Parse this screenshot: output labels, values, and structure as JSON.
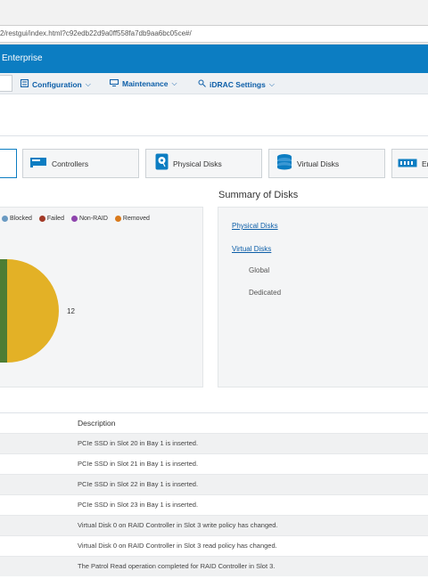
{
  "browser": {
    "url": "2/restgui/index.html?c92edb22d9a0ff558fa7db9aa6bc05ce#/"
  },
  "header": {
    "brand": "Enterprise",
    "brand_color": "#0c7dc2"
  },
  "menu": {
    "items": [
      {
        "label": "Configuration",
        "icon": "configuration-icon"
      },
      {
        "label": "Maintenance",
        "icon": "maintenance-icon"
      },
      {
        "label": "iDRAC Settings",
        "icon": "idrac-settings-icon"
      }
    ]
  },
  "tiles": [
    {
      "label": "Controllers",
      "icon": "controller-icon"
    },
    {
      "label": "Physical Disks",
      "icon": "physical-disk-icon"
    },
    {
      "label": "Virtual Disks",
      "icon": "virtual-disk-icon"
    },
    {
      "label": "En",
      "icon": "enclosure-icon"
    }
  ],
  "legend": [
    {
      "label": "Blocked",
      "color": "#6a9ac2"
    },
    {
      "label": "Failed",
      "color": "#a23a28"
    },
    {
      "label": "Non-RAID",
      "color": "#8e44ad"
    },
    {
      "label": "Removed",
      "color": "#d97a1c"
    }
  ],
  "chart_data": {
    "type": "pie",
    "slices": [
      {
        "label": "12",
        "value": 12,
        "color": "#e3b126"
      },
      {
        "color": "#4e7d34"
      }
    ],
    "data_label": "12"
  },
  "summary": {
    "title": "Summary of Disks",
    "links": [
      "Physical Disks",
      "Virtual Disks"
    ],
    "items": [
      "Global",
      "Dedicated"
    ]
  },
  "log": {
    "description_header": "Description",
    "rows": [
      "PCIe SSD in Slot 20 in Bay 1 is inserted.",
      "PCIe SSD in Slot 21 in Bay 1 is inserted.",
      "PCIe SSD in Slot 22 in Bay 1 is inserted.",
      "PCIe SSD in Slot 23 in Bay 1 is inserted.",
      "Virtual Disk 0 on RAID Controller in Slot 3 write policy has changed.",
      "Virtual Disk 0 on RAID Controller in Slot 3 read policy has changed.",
      "The Patrol Read operation completed for RAID Controller in Slot 3."
    ]
  }
}
